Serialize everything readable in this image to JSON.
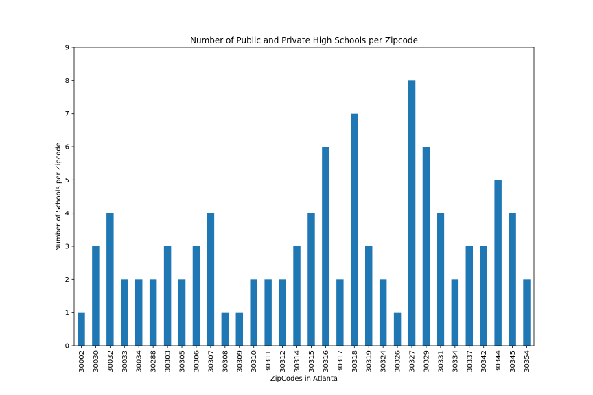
{
  "chart_data": {
    "type": "bar",
    "title": "Number of Public and Private High Schools per Zipcode",
    "xlabel": "ZipCodes in Atlanta",
    "ylabel": "Number of Schools per Zipcode",
    "categories": [
      "30002",
      "30030",
      "30032",
      "30033",
      "30034",
      "30288",
      "30303",
      "30305",
      "30306",
      "30307",
      "30308",
      "30309",
      "30310",
      "30311",
      "30312",
      "30314",
      "30315",
      "30316",
      "30317",
      "30318",
      "30319",
      "30324",
      "30326",
      "30327",
      "30329",
      "30331",
      "30334",
      "30337",
      "30342",
      "30344",
      "30345",
      "30354"
    ],
    "values": [
      1,
      3,
      4,
      2,
      2,
      2,
      3,
      2,
      3,
      4,
      1,
      1,
      2,
      2,
      2,
      3,
      4,
      6,
      2,
      7,
      3,
      2,
      1,
      8,
      6,
      4,
      2,
      3,
      3,
      5,
      4,
      2
    ],
    "ylim": [
      0,
      9
    ],
    "yticks": [
      0,
      1,
      2,
      3,
      4,
      5,
      6,
      7,
      8,
      9
    ],
    "bar_color": "#1f77b4",
    "grid": false,
    "legend": "none"
  }
}
